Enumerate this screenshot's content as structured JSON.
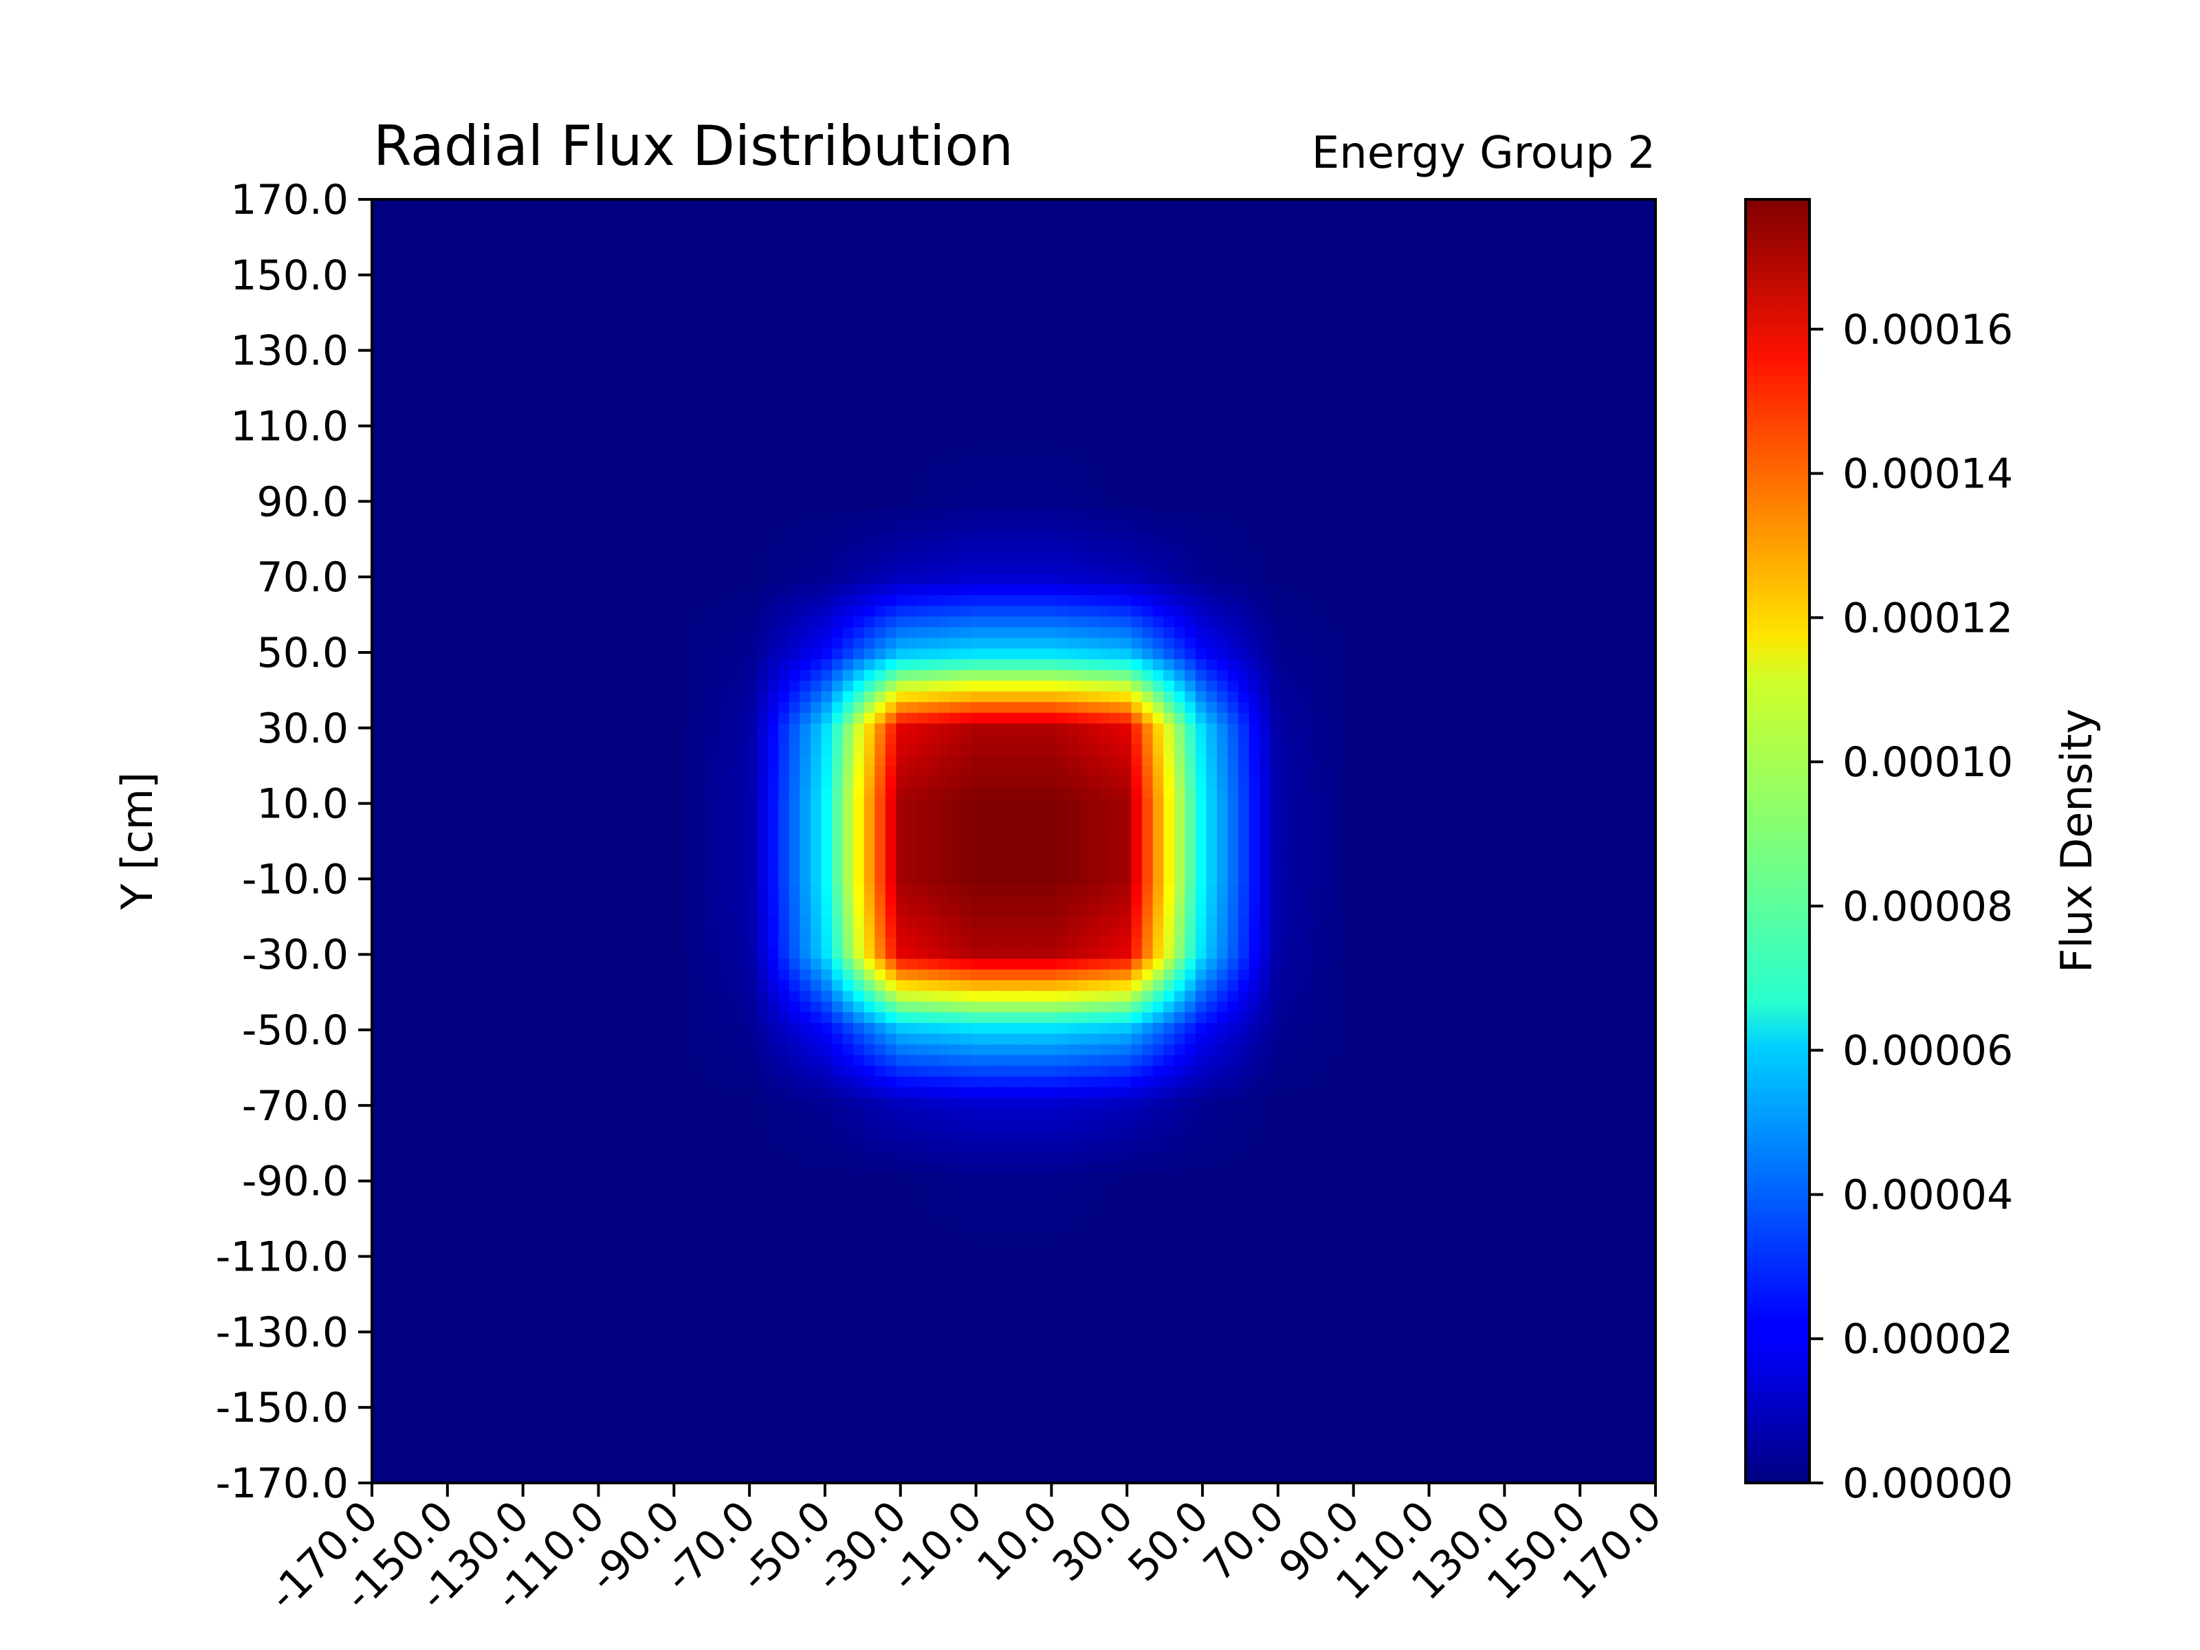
{
  "chart_data": {
    "type": "heatmap",
    "title": "Radial Flux Distribution",
    "subtitle": "Energy Group 2",
    "xlabel": "",
    "ylabel": "Y [cm]",
    "colorbar_label": "Flux Density",
    "colormap": "jet",
    "xlim": [
      -170,
      170
    ],
    "ylim": [
      -170,
      170
    ],
    "x_ticks": [
      "-170.0",
      "-150.0",
      "-130.0",
      "-110.0",
      "-90.0",
      "-70.0",
      "-50.0",
      "-30.0",
      "-10.0",
      "10.0",
      "30.0",
      "50.0",
      "70.0",
      "90.0",
      "110.0",
      "130.0",
      "150.0",
      "170.0"
    ],
    "y_ticks": [
      "170.0",
      "150.0",
      "130.0",
      "110.0",
      "90.0",
      "70.0",
      "50.0",
      "30.0",
      "10.0",
      "-10.0",
      "-30.0",
      "-50.0",
      "-70.0",
      "-90.0",
      "-110.0",
      "-130.0",
      "-150.0",
      "-170.0"
    ],
    "colorbar_range": [
      0,
      0.000178
    ],
    "colorbar_ticks": [
      {
        "value": 0.0,
        "label": "0.00000"
      },
      {
        "value": 2e-05,
        "label": "0.00002"
      },
      {
        "value": 4e-05,
        "label": "0.00004"
      },
      {
        "value": 6e-05,
        "label": "0.00006"
      },
      {
        "value": 8e-05,
        "label": "0.00008"
      },
      {
        "value": 0.0001,
        "label": "0.00010"
      },
      {
        "value": 0.00012,
        "label": "0.00012"
      },
      {
        "value": 0.00014,
        "label": "0.00014"
      },
      {
        "value": 0.00016,
        "label": "0.00016"
      }
    ],
    "grid_x_centers": [
      -170,
      -150,
      -130,
      -110,
      -90,
      -70,
      -50,
      -30,
      -10,
      10,
      30,
      50,
      70,
      90,
      110,
      130,
      150,
      170
    ],
    "grid_y_centers": [
      170,
      150,
      130,
      110,
      90,
      70,
      50,
      30,
      10,
      -10,
      -30,
      -50,
      -70,
      -90,
      -110,
      -130,
      -150,
      -170
    ],
    "values": [
      [
        0,
        0,
        0,
        0,
        0,
        0,
        0,
        0,
        0,
        0,
        0,
        0,
        0,
        0,
        0,
        0,
        0,
        0
      ],
      [
        0,
        0,
        0,
        0,
        0,
        0,
        0,
        0,
        0,
        0,
        0,
        0,
        0,
        0,
        0,
        0,
        0,
        0
      ],
      [
        0,
        0,
        0,
        0,
        0,
        0,
        0,
        0,
        0,
        0,
        0,
        0,
        0,
        0,
        0,
        0,
        0,
        0
      ],
      [
        0,
        0,
        0,
        0,
        0,
        0,
        0,
        0,
        0,
        0,
        0,
        0,
        0,
        0,
        0,
        0,
        0,
        0
      ],
      [
        0,
        0,
        0,
        0,
        0,
        0,
        0,
        0,
        2e-06,
        2e-06,
        0,
        0,
        0,
        0,
        0,
        0,
        0,
        0
      ],
      [
        0,
        0,
        0,
        0,
        0,
        0,
        3e-06,
        1e-05,
        1.3e-05,
        1.3e-05,
        1e-05,
        3e-06,
        0,
        0,
        0,
        0,
        0,
        0
      ],
      [
        0,
        0,
        0,
        0,
        0,
        3e-06,
        2.2e-05,
        5.5e-05,
        6e-05,
        6e-05,
        5.5e-05,
        2.2e-05,
        3e-06,
        0,
        0,
        0,
        0,
        0
      ],
      [
        0,
        0,
        0,
        0,
        0,
        6e-06,
        6e-05,
        0.00016,
        0.00017,
        0.00017,
        0.00016,
        6e-05,
        6e-06,
        0,
        0,
        0,
        0,
        0
      ],
      [
        0,
        0,
        0,
        0,
        0,
        7e-06,
        6.5e-05,
        0.000172,
        0.000178,
        0.000178,
        0.000172,
        6.5e-05,
        7e-06,
        0,
        0,
        0,
        0,
        0
      ],
      [
        0,
        0,
        0,
        0,
        0,
        7e-06,
        6.5e-05,
        0.000172,
        0.000178,
        0.000178,
        0.000172,
        6.5e-05,
        7e-06,
        0,
        0,
        0,
        0,
        0
      ],
      [
        0,
        0,
        0,
        0,
        0,
        6e-06,
        6e-05,
        0.00016,
        0.00017,
        0.00017,
        0.00016,
        6e-05,
        6e-06,
        0,
        0,
        0,
        0,
        0
      ],
      [
        0,
        0,
        0,
        0,
        0,
        3e-06,
        2.2e-05,
        5.5e-05,
        6e-05,
        6e-05,
        5.5e-05,
        2.2e-05,
        3e-06,
        0,
        0,
        0,
        0,
        0
      ],
      [
        0,
        0,
        0,
        0,
        0,
        0,
        3e-06,
        1e-05,
        1.3e-05,
        1.3e-05,
        1e-05,
        3e-06,
        0,
        0,
        0,
        0,
        0,
        0
      ],
      [
        0,
        0,
        0,
        0,
        0,
        0,
        0,
        0,
        2e-06,
        2e-06,
        0,
        0,
        0,
        0,
        0,
        0,
        0,
        0
      ],
      [
        0,
        0,
        0,
        0,
        0,
        0,
        0,
        0,
        0,
        0,
        0,
        0,
        0,
        0,
        0,
        0,
        0,
        0
      ],
      [
        0,
        0,
        0,
        0,
        0,
        0,
        0,
        0,
        0,
        0,
        0,
        0,
        0,
        0,
        0,
        0,
        0,
        0
      ],
      [
        0,
        0,
        0,
        0,
        0,
        0,
        0,
        0,
        0,
        0,
        0,
        0,
        0,
        0,
        0,
        0,
        0,
        0
      ],
      [
        0,
        0,
        0,
        0,
        0,
        0,
        0,
        0,
        0,
        0,
        0,
        0,
        0,
        0,
        0,
        0,
        0,
        0
      ]
    ]
  }
}
